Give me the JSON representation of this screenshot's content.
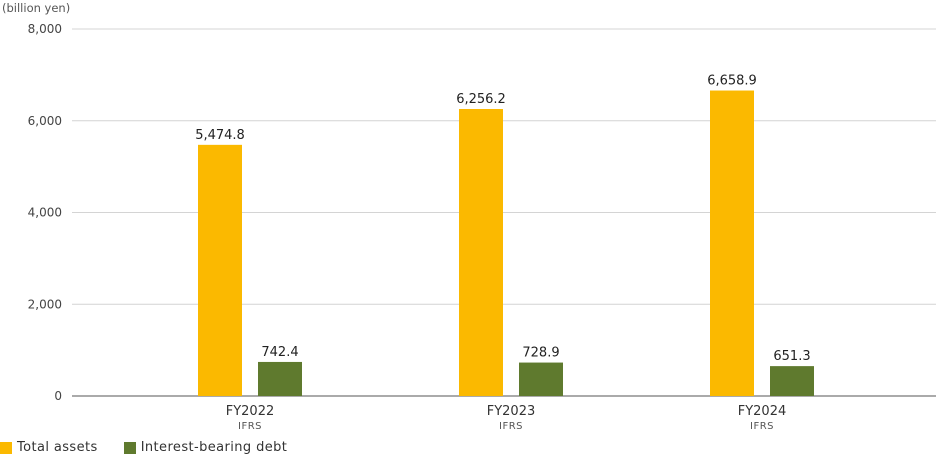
{
  "chart_data": {
    "type": "bar",
    "unit_label": "(billion yen)",
    "categories": [
      "FY2022",
      "FY2023",
      "FY2024"
    ],
    "category_sublabels": [
      "IFRS",
      "IFRS",
      "IFRS"
    ],
    "series": [
      {
        "name": "Total assets",
        "color": "#FBB900",
        "values": [
          5474.8,
          6256.2,
          6658.9
        ],
        "labels": [
          "5,474.8",
          "6,256.2",
          "6,658.9"
        ]
      },
      {
        "name": "Interest-bearing debt",
        "color": "#5F7A2E",
        "values": [
          742.4,
          728.9,
          651.3
        ],
        "labels": [
          "742.4",
          "728.9",
          "651.3"
        ]
      }
    ],
    "y_ticks": [
      "0",
      "2,000",
      "4,000",
      "6,000",
      "8,000"
    ],
    "y_tick_values": [
      0,
      2000,
      4000,
      6000,
      8000
    ],
    "ylim": [
      0,
      8000
    ],
    "grid": true,
    "legend_position": "bottom-left",
    "xlabel": "",
    "ylabel": ""
  }
}
